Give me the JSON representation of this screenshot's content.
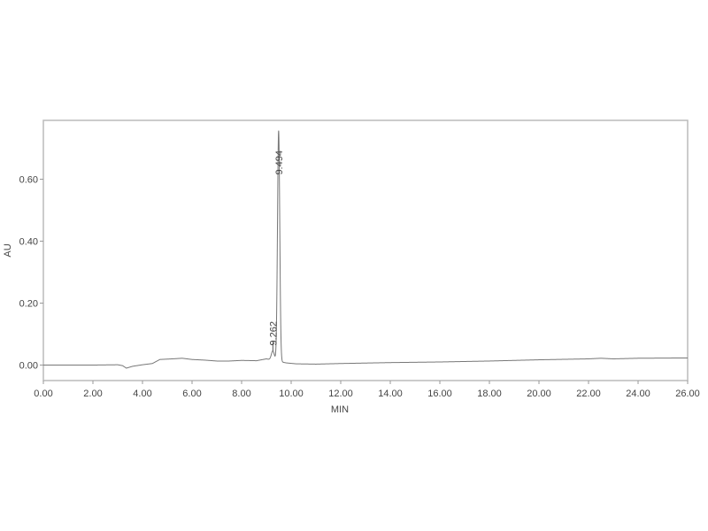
{
  "chart_data": {
    "type": "line",
    "title": "",
    "xlabel": "MIN",
    "ylabel": "AU",
    "xlim": [
      0,
      26
    ],
    "ylim": [
      -0.05,
      0.79
    ],
    "x_ticks": [
      "0.00",
      "2.00",
      "4.00",
      "6.00",
      "8.00",
      "10.00",
      "12.00",
      "14.00",
      "16.00",
      "18.00",
      "20.00",
      "22.00",
      "24.00",
      "26.00"
    ],
    "y_ticks": [
      "0.00",
      "0.20",
      "0.40",
      "0.60"
    ],
    "grid": false,
    "line_color": "#777777",
    "baseline": {
      "x": [
        0,
        1,
        2,
        3,
        3.2,
        3.35,
        3.6,
        4.0,
        4.4,
        4.7,
        5.2,
        5.6,
        6.0,
        6.5,
        7.0,
        7.5,
        8.0,
        8.6,
        9.0,
        9.8,
        10.2,
        11,
        12,
        14,
        16,
        18,
        20,
        22,
        22.5,
        23,
        24,
        26
      ],
      "y": [
        0,
        0,
        0,
        0.001,
        -0.002,
        -0.01,
        -0.004,
        0.001,
        0.005,
        0.018,
        0.02,
        0.022,
        0.018,
        0.016,
        0.013,
        0.013,
        0.015,
        0.014,
        0.02,
        0.007,
        0.004,
        0.003,
        0.005,
        0.008,
        0.01,
        0.013,
        0.017,
        0.02,
        0.022,
        0.02,
        0.022,
        0.023
      ]
    },
    "peaks": [
      {
        "label": "9.262",
        "rt": 9.262,
        "height": 0.03
      },
      {
        "label": "9.494",
        "rt": 9.494,
        "height": 0.745
      }
    ]
  }
}
